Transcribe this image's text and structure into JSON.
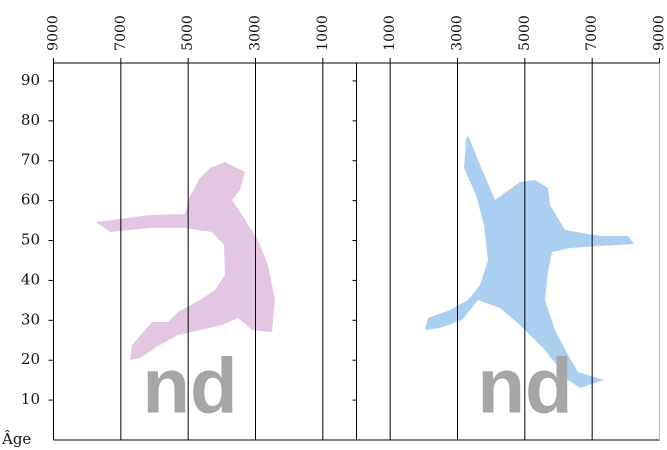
{
  "chart_data": {
    "type": "pyramid",
    "xlim": [
      0,
      9000
    ],
    "xticks": [
      1000,
      3000,
      5000,
      7000,
      9000
    ],
    "ylim": [
      0,
      94.5
    ],
    "yticks": [
      10,
      20,
      30,
      40,
      50,
      60,
      70,
      80,
      90
    ],
    "y_label": "Âge",
    "panels": [
      {
        "annotation": "nd",
        "color": "#e2c6e2"
      },
      {
        "annotation": "nd",
        "color": "#aacff1"
      }
    ],
    "grid": true
  }
}
